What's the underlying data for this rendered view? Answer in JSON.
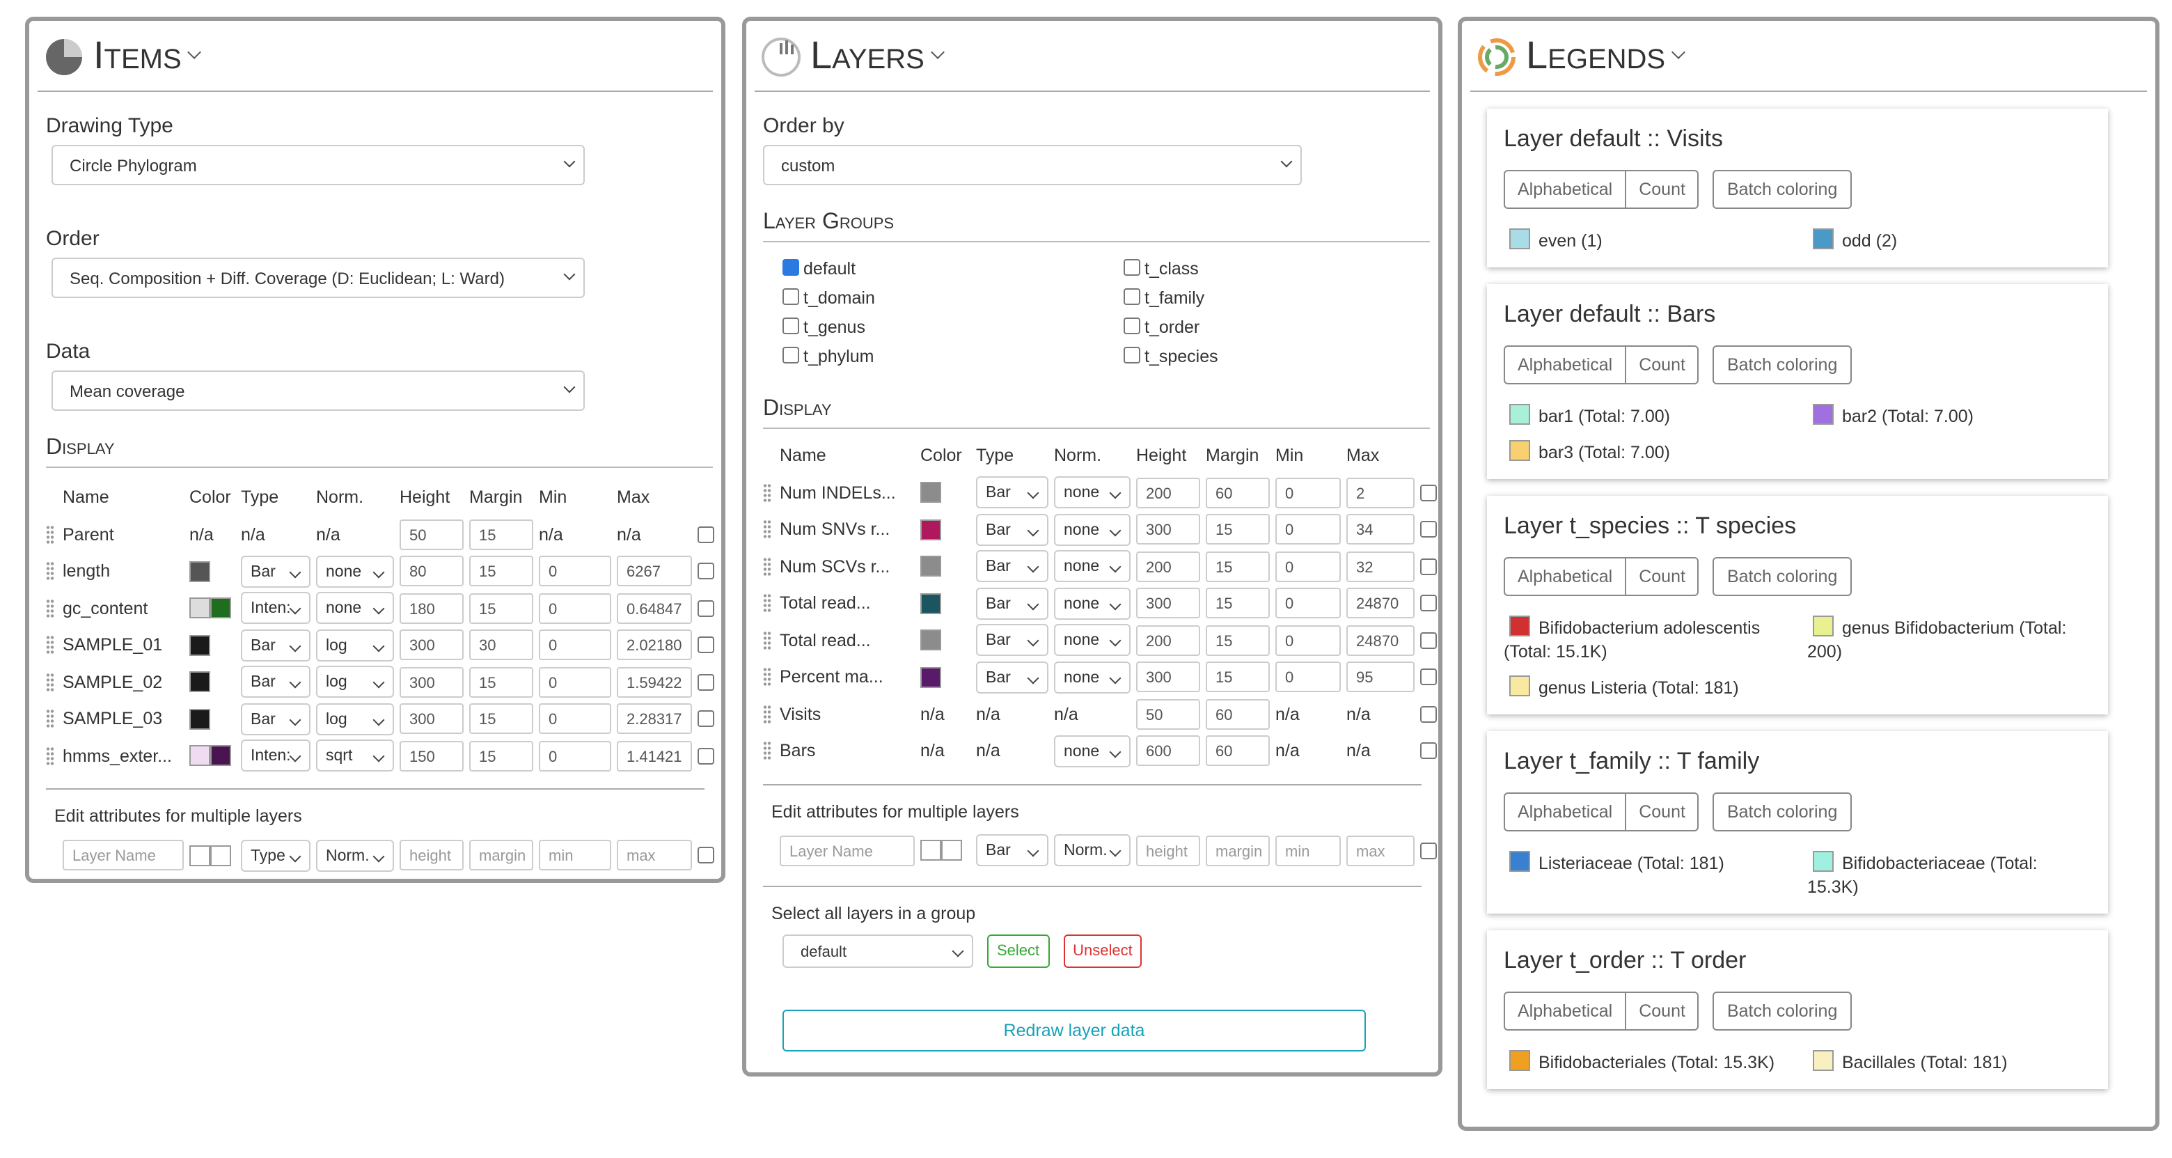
{
  "items": {
    "title": "Items",
    "drawing_type_label": "Drawing Type",
    "drawing_type": "Circle Phylogram",
    "order_label": "Order",
    "order": "Seq. Composition + Diff. Coverage (D: Euclidean; L: Ward)",
    "data_label": "Data",
    "data": "Mean coverage",
    "display_title": "Display",
    "columns": [
      "Name",
      "Color",
      "Type",
      "Norm.",
      "Height",
      "Margin",
      "Min",
      "Max"
    ],
    "rows": [
      {
        "name": "Parent",
        "color": "n/a",
        "type": "n/a",
        "norm": "n/a",
        "height": "50",
        "margin": "15",
        "min": "n/a",
        "max": "n/a"
      },
      {
        "name": "length",
        "colors": [
          "#555555"
        ],
        "type": "Bar",
        "norm": "none",
        "height": "80",
        "margin": "15",
        "min": "0",
        "max": "6267"
      },
      {
        "name": "gc_content",
        "colors": [
          "#dddddd",
          "#1e6e1e"
        ],
        "type": "Inten:",
        "norm": "none",
        "height": "180",
        "margin": "15",
        "min": "0",
        "max": "0.64847"
      },
      {
        "name": "SAMPLE_01",
        "colors": [
          "#1a1a1a"
        ],
        "type": "Bar",
        "norm": "log",
        "height": "300",
        "margin": "30",
        "min": "0",
        "max": "2.02180"
      },
      {
        "name": "SAMPLE_02",
        "colors": [
          "#1a1a1a"
        ],
        "type": "Bar",
        "norm": "log",
        "height": "300",
        "margin": "15",
        "min": "0",
        "max": "1.59422"
      },
      {
        "name": "SAMPLE_03",
        "colors": [
          "#1a1a1a"
        ],
        "type": "Bar",
        "norm": "log",
        "height": "300",
        "margin": "15",
        "min": "0",
        "max": "2.28317"
      },
      {
        "name": "hmms_exter...",
        "colors": [
          "#f0dcf0",
          "#4a1450"
        ],
        "type": "Inten:",
        "norm": "sqrt",
        "height": "150",
        "margin": "15",
        "min": "0",
        "max": "1.41421"
      }
    ],
    "edit_title": "Edit attributes for multiple layers",
    "edit": {
      "name": "Layer Name",
      "type": "Type",
      "norm": "Norm.",
      "height": "height",
      "margin": "margin",
      "min": "min",
      "max": "max"
    }
  },
  "layers": {
    "title": "Layers",
    "order_label": "Order by",
    "order": "custom",
    "groups_title": "Layer Groups",
    "groups": [
      {
        "name": "default",
        "checked": true
      },
      {
        "name": "t_class",
        "checked": false
      },
      {
        "name": "t_domain",
        "checked": false
      },
      {
        "name": "t_family",
        "checked": false
      },
      {
        "name": "t_genus",
        "checked": false
      },
      {
        "name": "t_order",
        "checked": false
      },
      {
        "name": "t_phylum",
        "checked": false
      },
      {
        "name": "t_species",
        "checked": false
      }
    ],
    "display_title": "Display",
    "columns": [
      "Name",
      "Color",
      "Type",
      "Norm.",
      "Height",
      "Margin",
      "Min",
      "Max"
    ],
    "rows": [
      {
        "name": "Num INDELs...",
        "colors": [
          "#8c8c8c"
        ],
        "type": "Bar",
        "norm": "none",
        "height": "200",
        "margin": "60",
        "min": "0",
        "max": "2"
      },
      {
        "name": "Num SNVs r...",
        "colors": [
          "#b0185e"
        ],
        "type": "Bar",
        "norm": "none",
        "height": "300",
        "margin": "15",
        "min": "0",
        "max": "34"
      },
      {
        "name": "Num SCVs r...",
        "colors": [
          "#8c8c8c"
        ],
        "type": "Bar",
        "norm": "none",
        "height": "200",
        "margin": "15",
        "min": "0",
        "max": "32"
      },
      {
        "name": "Total read...",
        "colors": [
          "#1a5560"
        ],
        "type": "Bar",
        "norm": "none",
        "height": "300",
        "margin": "15",
        "min": "0",
        "max": "24870"
      },
      {
        "name": "Total read...",
        "colors": [
          "#8c8c8c"
        ],
        "type": "Bar",
        "norm": "none",
        "height": "200",
        "margin": "15",
        "min": "0",
        "max": "24870"
      },
      {
        "name": "Percent ma...",
        "colors": [
          "#5a1a6a"
        ],
        "type": "Bar",
        "norm": "none",
        "height": "300",
        "margin": "15",
        "min": "0",
        "max": "95"
      },
      {
        "name": "Visits",
        "color": "n/a",
        "type": "n/a",
        "norm": "n/a",
        "height": "50",
        "margin": "60",
        "min": "n/a",
        "max": "n/a"
      },
      {
        "name": "Bars",
        "color": "n/a",
        "type": "n/a",
        "norm": "none",
        "height": "600",
        "margin": "60",
        "min": "n/a",
        "max": "n/a"
      }
    ],
    "edit_title": "Edit attributes for multiple layers",
    "edit": {
      "name": "Layer Name",
      "type": "Bar",
      "norm": "Norm.",
      "height": "height",
      "margin": "margin",
      "min": "min",
      "max": "max"
    },
    "select_title": "Select all layers in a group",
    "select_group": "default",
    "select": "Select",
    "unselect": "Unselect",
    "redraw": "Redraw layer data"
  },
  "legends": {
    "title": "Legends",
    "buttons": [
      "Alphabetical",
      "Count",
      "Batch coloring"
    ],
    "cards": [
      {
        "title": "Layer default :: Visits",
        "entries": [
          {
            "label": "even (1)",
            "color": "#a8dce6"
          },
          {
            "label": "odd (2)",
            "color": "#4a9ac8"
          }
        ]
      },
      {
        "title": "Layer default :: Bars",
        "entries": [
          {
            "label": "bar1 (Total: 7.00)",
            "color": "#a8f0d8"
          },
          {
            "label": "bar2 (Total: 7.00)",
            "color": "#a070e0"
          },
          {
            "label": "bar3 (Total: 7.00)",
            "color": "#f8d070"
          }
        ]
      },
      {
        "title": "Layer t_species :: T species",
        "entries": [
          {
            "label": "Bifidobacterium adolescentis (Total: 15.1K)",
            "color": "#d03030"
          },
          {
            "label": "genus Bifidobacterium (Total: 200)",
            "color": "#e8f090"
          },
          {
            "label": "genus Listeria (Total: 181)",
            "color": "#f8e8a0"
          }
        ]
      },
      {
        "title": "Layer t_family :: T family",
        "entries": [
          {
            "label": "Listeriaceae (Total: 181)",
            "color": "#3a80d0"
          },
          {
            "label": "Bifidobacteriaceae (Total: 15.3K)",
            "color": "#a0f0e0"
          }
        ]
      },
      {
        "title": "Layer t_order :: T order",
        "entries": [
          {
            "label": "Bifidobacteriales (Total: 15.3K)",
            "color": "#f0a020"
          },
          {
            "label": "Bacillales (Total: 181)",
            "color": "#f8f0c0"
          }
        ]
      }
    ]
  }
}
